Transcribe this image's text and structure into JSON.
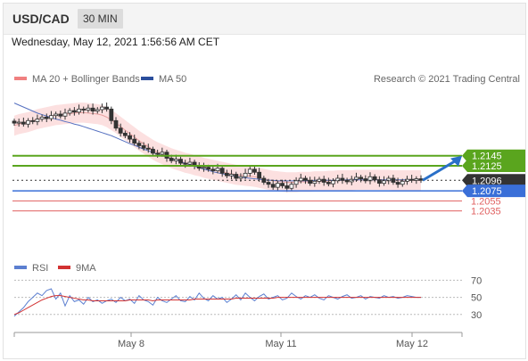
{
  "header": {
    "symbol": "USD/CAD",
    "timeframe": "30 MIN",
    "datetime": "Wednesday, May 12, 2021 1:56:56 AM CET"
  },
  "legend": {
    "ma20_label": "MA 20 + Bollinger Bands",
    "ma50_label": "MA 50",
    "credit": "Research © 2021 Trading Central",
    "rsi_label": "RSI",
    "rsi_ma_label": "9MA"
  },
  "colors": {
    "up_candle": "#ffffff",
    "down_candle": "#333333",
    "bollinger_fill": "#fbd0d0",
    "ma20": "#e8a0a0",
    "ma50": "#5570c0",
    "green_level": "#5aa51e",
    "blue_level": "#3a6fd8",
    "red_level": "#e06060",
    "current_price_bg": "#333333",
    "arrow": "#2a70c8",
    "rsi": "#5c7fd0",
    "rsi_ma": "#d23232"
  },
  "chart_data": [
    {
      "type": "line",
      "name": "price",
      "x_ticks": [
        "May 8",
        "May 11",
        "May 12"
      ],
      "levels": [
        {
          "value": 1.2145,
          "label": "1.2145",
          "kind": "resistance"
        },
        {
          "value": 1.2125,
          "label": "1.2125",
          "kind": "resistance"
        },
        {
          "value": 1.2096,
          "label": "1.2096",
          "kind": "current"
        },
        {
          "value": 1.2075,
          "label": "1.2075",
          "kind": "pivot"
        },
        {
          "value": 1.2055,
          "label": "1.2055",
          "kind": "support"
        },
        {
          "value": 1.2035,
          "label": "1.2035",
          "kind": "support"
        }
      ],
      "ylim": [
        1.202,
        1.226
      ],
      "close_values": [
        1.221,
        1.2212,
        1.2208,
        1.2215,
        1.2213,
        1.2218,
        1.2222,
        1.2219,
        1.2225,
        1.2228,
        1.2224,
        1.223,
        1.2235,
        1.2232,
        1.2238,
        1.2236,
        1.224,
        1.2234,
        1.2237,
        1.2242,
        1.2238,
        1.2215,
        1.22,
        1.219,
        1.2185,
        1.2178,
        1.217,
        1.2165,
        1.216,
        1.2158,
        1.215,
        1.2148,
        1.2152,
        1.214,
        1.2135,
        1.2138,
        1.213,
        1.2128,
        1.2132,
        1.2125,
        1.212,
        1.2122,
        1.2118,
        1.2115,
        1.212,
        1.211,
        1.2105,
        1.2108,
        1.21,
        1.2103,
        1.211,
        1.2118,
        1.2112,
        1.21,
        1.2092,
        1.2088,
        1.2082,
        1.209,
        1.2085,
        1.208,
        1.2088,
        1.2095,
        1.21,
        1.2096,
        1.209,
        1.2094,
        1.2098,
        1.2092,
        1.2089,
        1.2095,
        1.21,
        1.2096,
        1.2093,
        1.2098,
        1.2102,
        1.2099,
        1.2095,
        1.2103,
        1.2097,
        1.209,
        1.2095,
        1.21,
        1.2092,
        1.2088,
        1.2094,
        1.2098,
        1.2096,
        1.2099,
        1.2096
      ],
      "ma20_values": [
        1.2205,
        1.2208,
        1.221,
        1.2212,
        1.2215,
        1.2218,
        1.222,
        1.2222,
        1.2224,
        1.2226,
        1.2227,
        1.2228,
        1.2229,
        1.223,
        1.2231,
        1.2231,
        1.223,
        1.2229,
        1.2228,
        1.2226,
        1.2222,
        1.2216,
        1.221,
        1.2203,
        1.2196,
        1.2189,
        1.2182,
        1.2175,
        1.2169,
        1.2163,
        1.2157,
        1.2152,
        1.2148,
        1.2144,
        1.214,
        1.2137,
        1.2134,
        1.2131,
        1.2129,
        1.2126,
        1.2124,
        1.2121,
        1.2119,
        1.2117,
        1.2115,
        1.2113,
        1.2111,
        1.2109,
        1.2107,
        1.2106,
        1.2105,
        1.2104,
        1.2103,
        1.2101,
        1.2099,
        1.2097,
        1.2095,
        1.2094,
        1.2093,
        1.2092,
        1.2092,
        1.2092,
        1.2093,
        1.2093,
        1.2093,
        1.2094,
        1.2094,
        1.2094,
        1.2095,
        1.2095,
        1.2096,
        1.2096,
        1.2096,
        1.2096,
        1.2097,
        1.2097,
        1.2097,
        1.2097,
        1.2097,
        1.2097,
        1.2097,
        1.2097,
        1.2096,
        1.2096,
        1.2096,
        1.2096,
        1.2096,
        1.2096,
        1.2096
      ],
      "ma50_values": [
        1.225,
        1.2246,
        1.2242,
        1.2238,
        1.2234,
        1.223,
        1.2227,
        1.2224,
        1.2221,
        1.2218,
        1.2216,
        1.2213,
        1.2211,
        1.2208,
        1.2206,
        1.2203,
        1.22,
        1.2197,
        1.2194,
        1.2191,
        1.2188,
        1.2185,
        1.2181,
        1.2177,
        1.2173,
        1.2169,
        1.2166,
        1.2162,
        1.2158,
        1.2155,
        1.2151,
        1.2148,
        1.2145,
        1.2142,
        1.2139,
        1.2136,
        1.2133,
        1.213,
        1.2127,
        1.2124,
        1.2121,
        1.2118,
        1.2116,
        1.2113,
        1.2111,
        1.2109,
        1.2107,
        1.2105,
        1.2104,
        1.2102,
        1.2101,
        1.21,
        1.2099,
        1.2098,
        1.2097,
        1.2096,
        1.2096,
        1.2095,
        1.2095,
        1.2095,
        1.2095,
        1.2095,
        1.2095,
        1.2095,
        1.2095,
        1.2096,
        1.2096,
        1.2096,
        1.2096,
        1.2096,
        1.2096,
        1.2096,
        1.2097,
        1.2097,
        1.2097,
        1.2097,
        1.2097,
        1.2097,
        1.2097,
        1.2097,
        1.2097,
        1.2097,
        1.2097,
        1.2097,
        1.2097,
        1.2097,
        1.2097,
        1.2097,
        1.2097
      ]
    },
    {
      "type": "line",
      "name": "RSI",
      "y_ticks": [
        70,
        50,
        30
      ],
      "ylim": [
        10,
        85
      ],
      "rsi_values": [
        28,
        33,
        38,
        45,
        50,
        55,
        52,
        58,
        60,
        48,
        55,
        40,
        52,
        45,
        47,
        42,
        50,
        45,
        47,
        43,
        46,
        48,
        44,
        50,
        46,
        48,
        43,
        52,
        47,
        45,
        41,
        50,
        46,
        44,
        48,
        52,
        46,
        45,
        51,
        47,
        55,
        49,
        46,
        52,
        48,
        50,
        44,
        48,
        53,
        47,
        55,
        50,
        46,
        51,
        54,
        48,
        50,
        52,
        47,
        49,
        55,
        51,
        48,
        52,
        50,
        53,
        49,
        47,
        52,
        50,
        48,
        51,
        53,
        49,
        50,
        52,
        48,
        51,
        50,
        49,
        52,
        50,
        51,
        49,
        50,
        52,
        51,
        50,
        50
      ],
      "rsi_ma_values": [
        30,
        32,
        35,
        38,
        41,
        44,
        47,
        49,
        51,
        52,
        52,
        51,
        50,
        49,
        48,
        47,
        47,
        46,
        46,
        46,
        46,
        46,
        46,
        46,
        46,
        47,
        47,
        47,
        47,
        47,
        46,
        47,
        47,
        47,
        47,
        47,
        47,
        47,
        47,
        48,
        48,
        48,
        48,
        48,
        48,
        48,
        48,
        48,
        49,
        49,
        49,
        49,
        49,
        49,
        49,
        49,
        49,
        50,
        50,
        50,
        50,
        50,
        50,
        50,
        50,
        50,
        50,
        50,
        50,
        50,
        50,
        50,
        50,
        50,
        50,
        50,
        50,
        50,
        50,
        50,
        50,
        50,
        50,
        50,
        50,
        50,
        50,
        50,
        50
      ]
    }
  ]
}
